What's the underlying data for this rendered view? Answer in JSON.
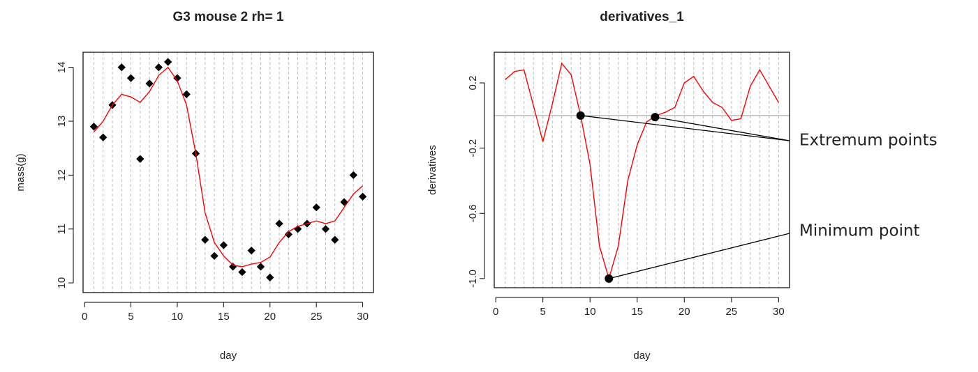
{
  "chart_data": [
    {
      "type": "scatter",
      "title": "G3 mouse 2 rh= 1",
      "x_label": "day",
      "y_label": "mass(g)",
      "x": [
        1,
        2,
        3,
        4,
        5,
        6,
        7,
        8,
        9,
        10,
        11,
        12,
        13,
        14,
        15,
        16,
        17,
        18,
        19,
        20,
        21,
        22,
        23,
        24,
        25,
        26,
        27,
        28,
        29,
        30
      ],
      "series": [
        {
          "style": "points",
          "color": "#000000",
          "values": [
            12.9,
            12.7,
            13.3,
            14.0,
            13.8,
            12.3,
            13.7,
            14.0,
            14.1,
            13.8,
            13.5,
            12.4,
            10.8,
            10.5,
            10.7,
            10.3,
            10.2,
            10.6,
            10.3,
            10.1,
            11.1,
            10.9,
            11.0,
            11.1,
            11.4,
            11.0,
            10.8,
            11.5,
            12.0,
            11.6
          ]
        },
        {
          "style": "line",
          "color": "#ff0000",
          "values": [
            12.8,
            13.0,
            13.3,
            13.5,
            13.45,
            13.35,
            13.55,
            13.85,
            14.0,
            13.75,
            13.3,
            12.4,
            11.3,
            10.75,
            10.5,
            10.33,
            10.3,
            10.35,
            10.38,
            10.48,
            10.75,
            10.95,
            11.05,
            11.1,
            11.15,
            11.1,
            11.15,
            11.4,
            11.65,
            11.8
          ]
        }
      ],
      "xlim": [
        -0.16,
        31.16
      ],
      "xticks": [
        0,
        5,
        10,
        15,
        20,
        25,
        30
      ],
      "ylim": [
        9.82,
        14.28
      ],
      "yticks": [
        10,
        11,
        12,
        13,
        14
      ],
      "grid": true
    },
    {
      "type": "line",
      "title": "derivatives_1",
      "x_label": "day",
      "y_label": "derivatives",
      "x": [
        1,
        2,
        3,
        4,
        5,
        6,
        7,
        8,
        9,
        10,
        11,
        12,
        13,
        14,
        15,
        16,
        17,
        18,
        19,
        20,
        21,
        22,
        23,
        24,
        25,
        26,
        27,
        28,
        29,
        30
      ],
      "series": [
        {
          "style": "line",
          "color": "#ff0000",
          "values": [
            0.22,
            0.27,
            0.28,
            0.06,
            -0.16,
            0.07,
            0.32,
            0.25,
            0.0,
            -0.3,
            -0.8,
            -1.0,
            -0.8,
            -0.4,
            -0.18,
            -0.04,
            0.0,
            0.02,
            0.05,
            0.2,
            0.24,
            0.15,
            0.08,
            0.05,
            -0.03,
            -0.02,
            0.18,
            0.28,
            0.18,
            0.08
          ]
        }
      ],
      "markers": {
        "x": [
          9,
          16.9,
          12
        ],
        "values": [
          0.0,
          -0.01,
          -1.0
        ],
        "color": "#000000"
      },
      "hline": 0,
      "annotations": [
        {
          "text": "Extremum points"
        },
        {
          "text": "Minimum point"
        }
      ],
      "xlim": [
        -0.16,
        31.16
      ],
      "xticks": [
        0,
        5,
        10,
        15,
        20,
        25,
        30
      ],
      "ylim": [
        -1.056,
        0.388
      ],
      "yticks": [
        0.2,
        -0.2,
        -0.6,
        {
          "value": -1,
          "label": "-1.0"
        }
      ],
      "grid": true
    }
  ]
}
